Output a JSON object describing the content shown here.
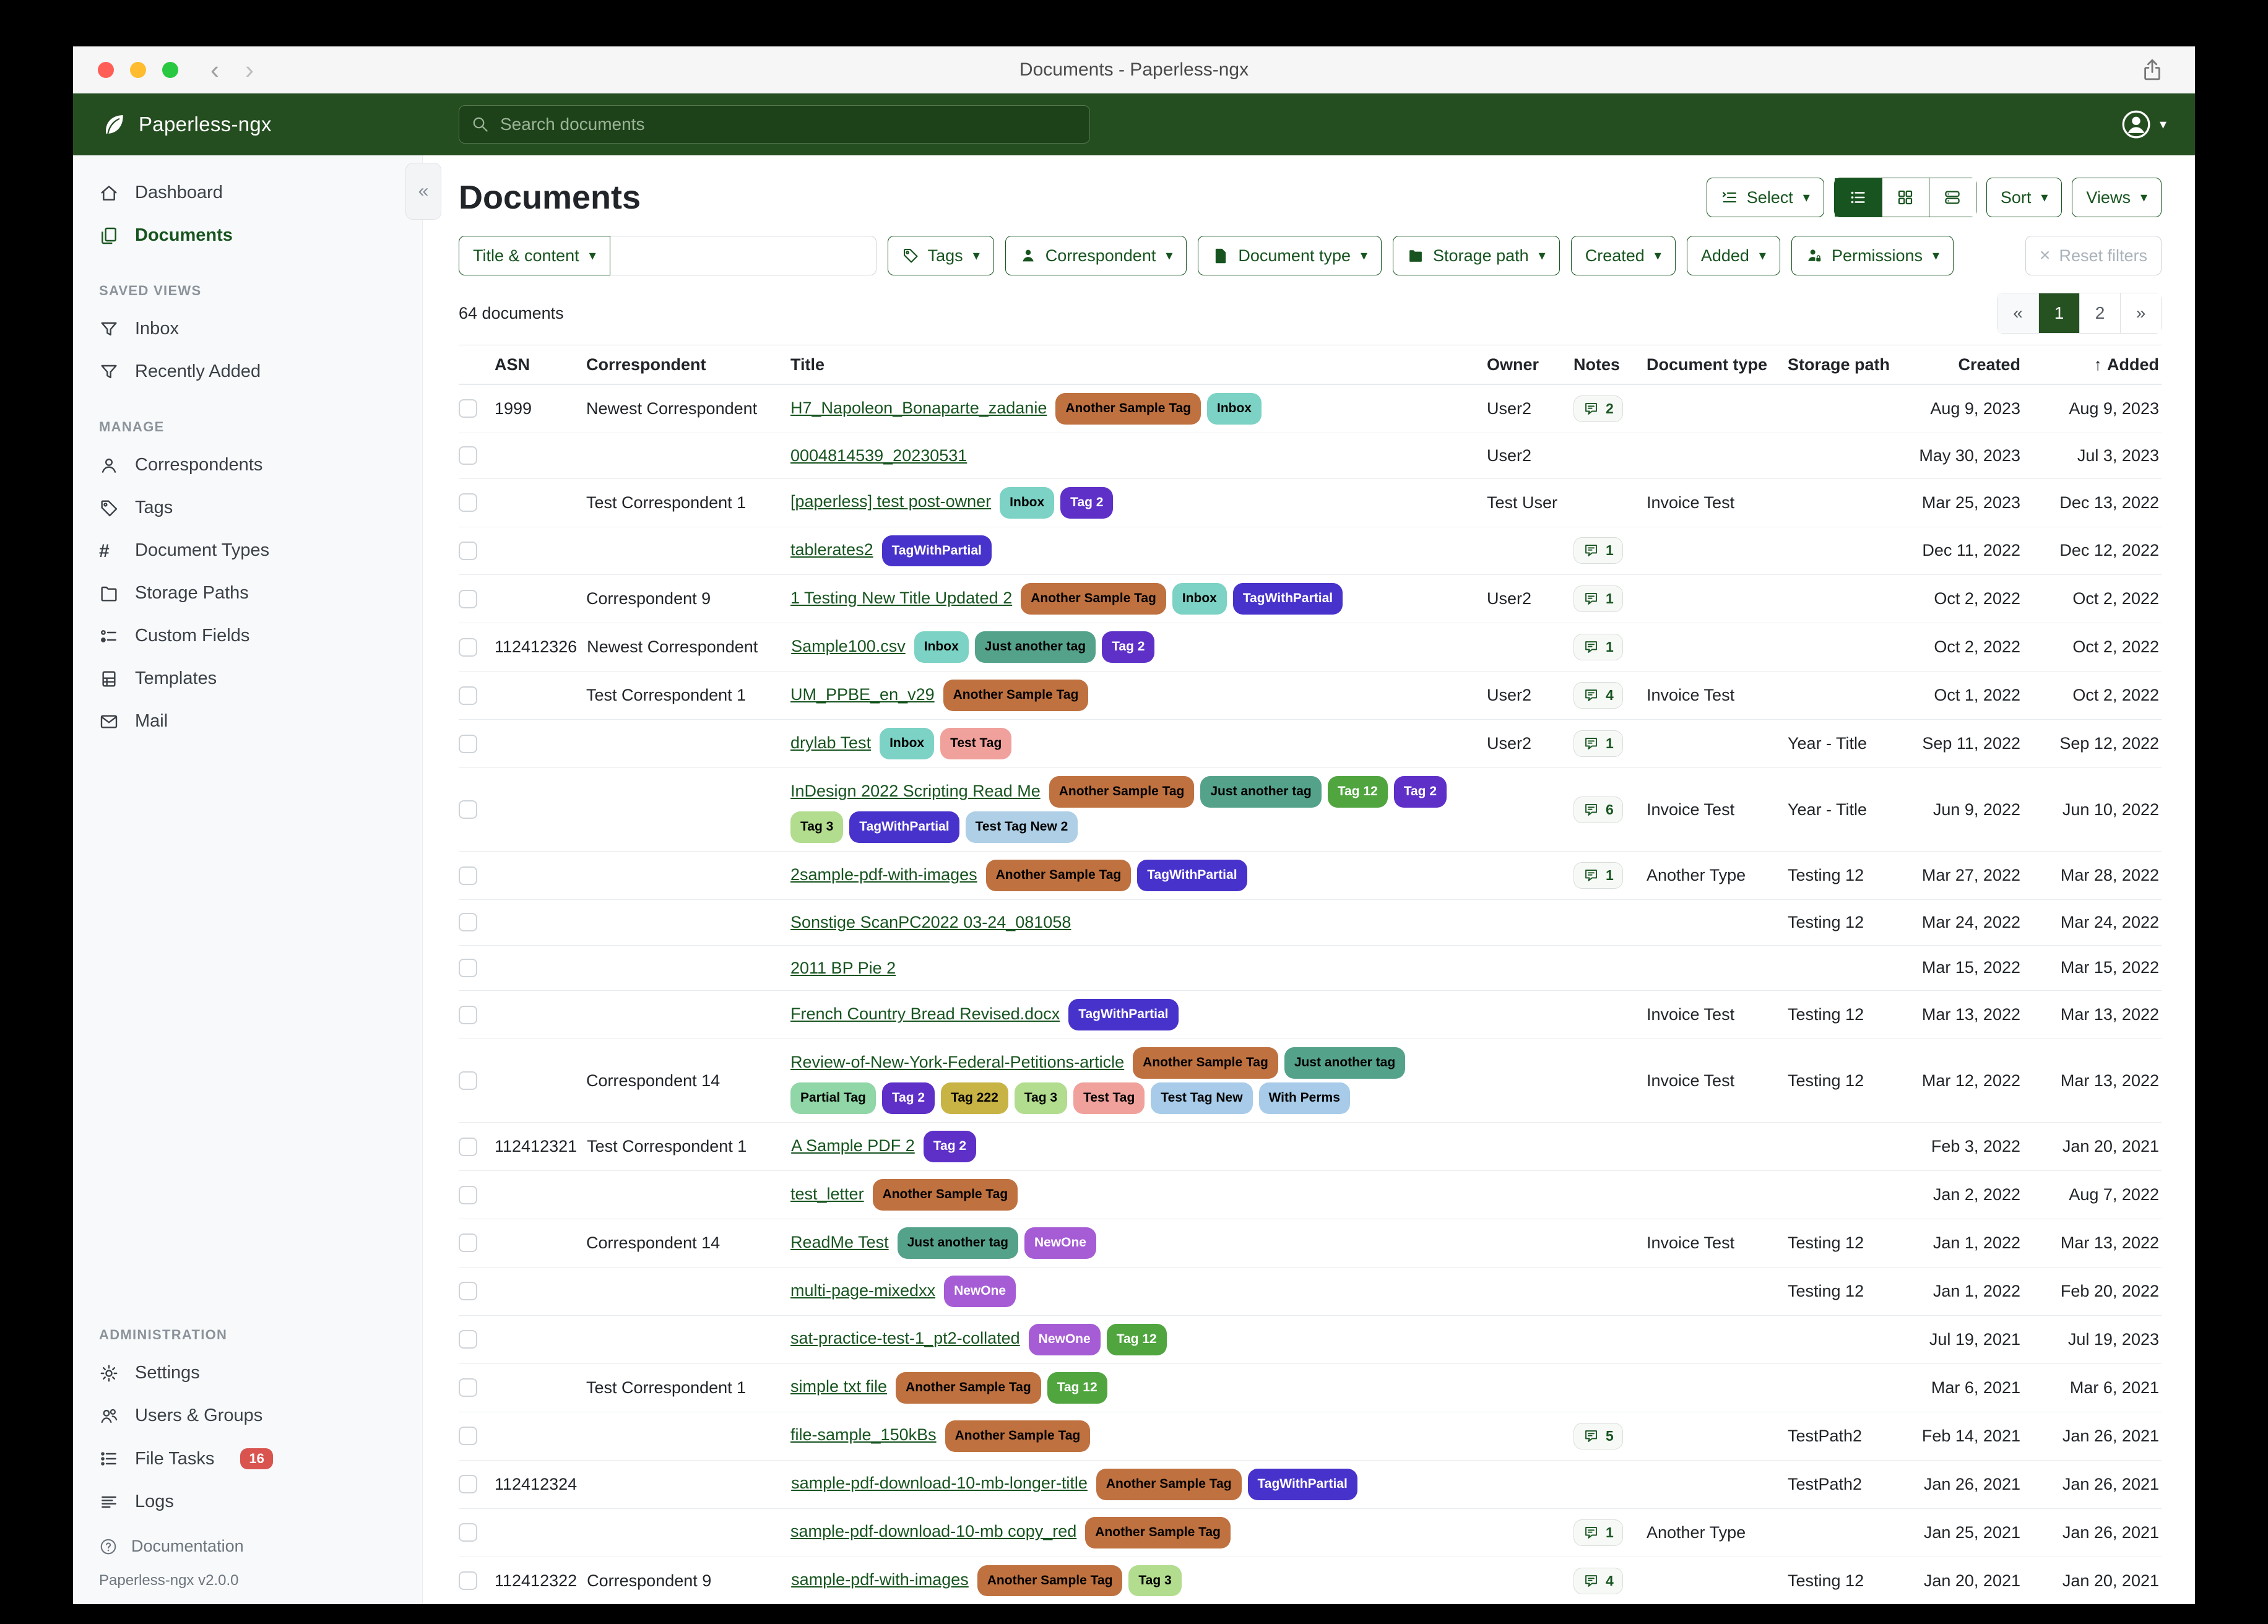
{
  "window": {
    "title": "Documents - Paperless-ngx"
  },
  "navbar": {
    "brand": "Paperless-ngx",
    "search_placeholder": "Search documents"
  },
  "sidebar": {
    "sections": [
      {
        "heading": null,
        "items": [
          {
            "label": "Dashboard",
            "icon": "dashboard-icon"
          },
          {
            "label": "Documents",
            "icon": "documents-icon",
            "active": true
          }
        ]
      },
      {
        "heading": "SAVED VIEWS",
        "items": [
          {
            "label": "Inbox",
            "icon": "filter-icon"
          },
          {
            "label": "Recently Added",
            "icon": "filter-icon"
          }
        ]
      },
      {
        "heading": "MANAGE",
        "items": [
          {
            "label": "Correspondents",
            "icon": "person-icon"
          },
          {
            "label": "Tags",
            "icon": "tag-icon"
          },
          {
            "label": "Document Types",
            "icon": "hash-icon"
          },
          {
            "label": "Storage Paths",
            "icon": "folder-icon"
          },
          {
            "label": "Custom Fields",
            "icon": "custom-fields-icon"
          },
          {
            "label": "Templates",
            "icon": "template-icon"
          },
          {
            "label": "Mail",
            "icon": "mail-icon"
          }
        ]
      },
      {
        "heading": "ADMINISTRATION",
        "items": [
          {
            "label": "Settings",
            "icon": "gear-icon"
          },
          {
            "label": "Users & Groups",
            "icon": "users-icon"
          },
          {
            "label": "File Tasks",
            "icon": "tasks-icon",
            "badge": "16"
          },
          {
            "label": "Logs",
            "icon": "logs-icon"
          }
        ]
      }
    ],
    "footer": {
      "documentation": "Documentation",
      "version": "Paperless-ngx v2.0.0"
    }
  },
  "page": {
    "title": "Documents",
    "actions": {
      "select": "Select",
      "sort": "Sort",
      "views": "Views"
    },
    "filters": {
      "title_content": "Title & content",
      "buttons": [
        {
          "label": "Tags",
          "icon": "tag-icon"
        },
        {
          "label": "Correspondent",
          "icon": "person-fill-icon"
        },
        {
          "label": "Document type",
          "icon": "file-icon"
        },
        {
          "label": "Storage path",
          "icon": "folder-fill-icon"
        },
        {
          "label": "Created"
        },
        {
          "label": "Added"
        },
        {
          "label": "Permissions",
          "icon": "user-lock-icon"
        }
      ],
      "reset": "Reset filters"
    },
    "count": "64 documents",
    "pagination": {
      "prev": "«",
      "pages": [
        "1",
        "2"
      ],
      "next": "»",
      "active": "1"
    }
  },
  "tag_colors": {
    "Another Sample Tag": {
      "bg": "#bf7140",
      "fg": "#000000"
    },
    "Inbox": {
      "bg": "#7bd2c5",
      "fg": "#000000"
    },
    "Tag 2": {
      "bg": "#5e30c8",
      "fg": "#ffffff"
    },
    "TagWithPartial": {
      "bg": "#4733cb",
      "fg": "#ffffff"
    },
    "Just another tag": {
      "bg": "#55a28b",
      "fg": "#000000"
    },
    "Tag 12": {
      "bg": "#50a53f",
      "fg": "#ffffff"
    },
    "Tag 3": {
      "bg": "#b2dc8e",
      "fg": "#000000"
    },
    "Test Tag New 2": {
      "bg": "#aecfe5",
      "fg": "#000000"
    },
    "Test Tag": {
      "bg": "#f0a19c",
      "fg": "#000000"
    },
    "Partial Tag": {
      "bg": "#90d6a6",
      "fg": "#000000"
    },
    "Tag 222": {
      "bg": "#c8b345",
      "fg": "#000000"
    },
    "Test Tag New": {
      "bg": "#a7cbe8",
      "fg": "#000000"
    },
    "With Perms": {
      "bg": "#a7cbe8",
      "fg": "#000000"
    },
    "NewOne": {
      "bg": "#a55cd5",
      "fg": "#ffffff"
    }
  },
  "table": {
    "columns": [
      "ASN",
      "Correspondent",
      "Title",
      "Owner",
      "Notes",
      "Document type",
      "Storage path",
      "Created",
      "Added"
    ],
    "sort_column": "Added",
    "rows": [
      {
        "asn": "1999",
        "correspondent": "Newest Correspondent",
        "title": "H7_Napoleon_Bonaparte_zadanie",
        "tags": [
          "Another Sample Tag",
          "Inbox"
        ],
        "owner": "User2",
        "notes": "2",
        "doctype": "",
        "storage": "",
        "created": "Aug 9, 2023",
        "added": "Aug 9, 2023"
      },
      {
        "asn": "",
        "correspondent": "",
        "title": "0004814539_20230531",
        "tags": [],
        "owner": "User2",
        "notes": null,
        "doctype": "",
        "storage": "",
        "created": "May 30, 2023",
        "added": "Jul 3, 2023"
      },
      {
        "asn": "",
        "correspondent": "Test Correspondent 1",
        "title": "[paperless] test post-owner",
        "tags": [
          "Inbox",
          "Tag 2"
        ],
        "owner": "Test User",
        "notes": null,
        "doctype": "Invoice Test",
        "storage": "",
        "created": "Mar 25, 2023",
        "added": "Dec 13, 2022"
      },
      {
        "asn": "",
        "correspondent": "",
        "title": "tablerates2",
        "tags": [
          "TagWithPartial"
        ],
        "owner": "",
        "notes": "1",
        "doctype": "",
        "storage": "",
        "created": "Dec 11, 2022",
        "added": "Dec 12, 2022"
      },
      {
        "asn": "",
        "correspondent": "Correspondent 9",
        "title": "1 Testing New Title Updated 2",
        "tags": [
          "Another Sample Tag",
          "Inbox",
          "TagWithPartial"
        ],
        "owner": "User2",
        "notes": "1",
        "doctype": "",
        "storage": "",
        "created": "Oct 2, 2022",
        "added": "Oct 2, 2022"
      },
      {
        "asn": "112412326",
        "correspondent": "Newest Correspondent",
        "title": "Sample100.csv",
        "tags": [
          "Inbox",
          "Just another tag",
          "Tag 2"
        ],
        "owner": "",
        "notes": "1",
        "doctype": "",
        "storage": "",
        "created": "Oct 2, 2022",
        "added": "Oct 2, 2022"
      },
      {
        "asn": "",
        "correspondent": "Test Correspondent 1",
        "title": "UM_PPBE_en_v29",
        "tags": [
          "Another Sample Tag"
        ],
        "owner": "User2",
        "notes": "4",
        "doctype": "Invoice Test",
        "storage": "",
        "created": "Oct 1, 2022",
        "added": "Oct 2, 2022"
      },
      {
        "asn": "",
        "correspondent": "",
        "title": "drylab Test",
        "tags": [
          "Inbox",
          "Test Tag"
        ],
        "owner": "User2",
        "notes": "1",
        "doctype": "",
        "storage": "Year - Title",
        "created": "Sep 11, 2022",
        "added": "Sep 12, 2022"
      },
      {
        "asn": "",
        "correspondent": "",
        "title": "InDesign 2022 Scripting Read Me",
        "tags": [
          "Another Sample Tag",
          "Just another tag",
          "Tag 12",
          "Tag 2",
          "Tag 3",
          "TagWithPartial",
          "Test Tag New 2"
        ],
        "owner": "",
        "notes": "6",
        "doctype": "Invoice Test",
        "storage": "Year - Title",
        "created": "Jun 9, 2022",
        "added": "Jun 10, 2022"
      },
      {
        "asn": "",
        "correspondent": "",
        "title": "2sample-pdf-with-images",
        "tags": [
          "Another Sample Tag",
          "TagWithPartial"
        ],
        "owner": "",
        "notes": "1",
        "doctype": "Another Type",
        "storage": "Testing 12",
        "created": "Mar 27, 2022",
        "added": "Mar 28, 2022"
      },
      {
        "asn": "",
        "correspondent": "",
        "title": "Sonstige ScanPC2022 03-24_081058",
        "tags": [],
        "owner": "",
        "notes": null,
        "doctype": "",
        "storage": "Testing 12",
        "created": "Mar 24, 2022",
        "added": "Mar 24, 2022"
      },
      {
        "asn": "",
        "correspondent": "",
        "title": "2011 BP Pie 2",
        "tags": [],
        "owner": "",
        "notes": null,
        "doctype": "",
        "storage": "",
        "created": "Mar 15, 2022",
        "added": "Mar 15, 2022"
      },
      {
        "asn": "",
        "correspondent": "",
        "title": "French Country Bread Revised.docx",
        "tags": [
          "TagWithPartial"
        ],
        "owner": "",
        "notes": null,
        "doctype": "Invoice Test",
        "storage": "Testing 12",
        "created": "Mar 13, 2022",
        "added": "Mar 13, 2022"
      },
      {
        "asn": "",
        "correspondent": "Correspondent 14",
        "title": "Review-of-New-York-Federal-Petitions-article",
        "tags": [
          "Another Sample Tag",
          "Just another tag",
          "Partial Tag",
          "Tag 2",
          "Tag 222",
          "Tag 3",
          "Test Tag",
          "Test Tag New",
          "With Perms"
        ],
        "owner": "",
        "notes": null,
        "doctype": "Invoice Test",
        "storage": "Testing 12",
        "created": "Mar 12, 2022",
        "added": "Mar 13, 2022"
      },
      {
        "asn": "112412321",
        "correspondent": "Test Correspondent 1",
        "title": "A Sample PDF 2",
        "tags": [
          "Tag 2"
        ],
        "owner": "",
        "notes": null,
        "doctype": "",
        "storage": "",
        "created": "Feb 3, 2022",
        "added": "Jan 20, 2021"
      },
      {
        "asn": "",
        "correspondent": "",
        "title": "test_letter",
        "tags": [
          "Another Sample Tag"
        ],
        "owner": "",
        "notes": null,
        "doctype": "",
        "storage": "",
        "created": "Jan 2, 2022",
        "added": "Aug 7, 2022"
      },
      {
        "asn": "",
        "correspondent": "Correspondent 14",
        "title": "ReadMe Test",
        "tags": [
          "Just another tag",
          "NewOne"
        ],
        "owner": "",
        "notes": null,
        "doctype": "Invoice Test",
        "storage": "Testing 12",
        "created": "Jan 1, 2022",
        "added": "Mar 13, 2022"
      },
      {
        "asn": "",
        "correspondent": "",
        "title": "multi-page-mixedxx",
        "tags": [
          "NewOne"
        ],
        "owner": "",
        "notes": null,
        "doctype": "",
        "storage": "Testing 12",
        "created": "Jan 1, 2022",
        "added": "Feb 20, 2022"
      },
      {
        "asn": "",
        "correspondent": "",
        "title": "sat-practice-test-1_pt2-collated",
        "tags": [
          "NewOne",
          "Tag 12"
        ],
        "owner": "",
        "notes": null,
        "doctype": "",
        "storage": "",
        "created": "Jul 19, 2021",
        "added": "Jul 19, 2023"
      },
      {
        "asn": "",
        "correspondent": "Test Correspondent 1",
        "title": "simple txt file",
        "tags": [
          "Another Sample Tag",
          "Tag 12"
        ],
        "owner": "",
        "notes": null,
        "doctype": "",
        "storage": "",
        "created": "Mar 6, 2021",
        "added": "Mar 6, 2021"
      },
      {
        "asn": "",
        "correspondent": "",
        "title": "file-sample_150kBs",
        "tags": [
          "Another Sample Tag"
        ],
        "owner": "",
        "notes": "5",
        "doctype": "",
        "storage": "TestPath2",
        "created": "Feb 14, 2021",
        "added": "Jan 26, 2021"
      },
      {
        "asn": "112412324",
        "correspondent": "",
        "title": "sample-pdf-download-10-mb-longer-title",
        "tags": [
          "Another Sample Tag",
          "TagWithPartial"
        ],
        "owner": "",
        "notes": null,
        "doctype": "",
        "storage": "TestPath2",
        "created": "Jan 26, 2021",
        "added": "Jan 26, 2021"
      },
      {
        "asn": "",
        "correspondent": "",
        "title": "sample-pdf-download-10-mb copy_red",
        "tags": [
          "Another Sample Tag"
        ],
        "owner": "",
        "notes": "1",
        "doctype": "Another Type",
        "storage": "",
        "created": "Jan 25, 2021",
        "added": "Jan 26, 2021"
      },
      {
        "asn": "112412322",
        "correspondent": "Correspondent 9",
        "title": "sample-pdf-with-images",
        "tags": [
          "Another Sample Tag",
          "Tag 3"
        ],
        "owner": "",
        "notes": "4",
        "doctype": "",
        "storage": "Testing 12",
        "created": "Jan 20, 2021",
        "added": "Jan 20, 2021"
      }
    ]
  }
}
